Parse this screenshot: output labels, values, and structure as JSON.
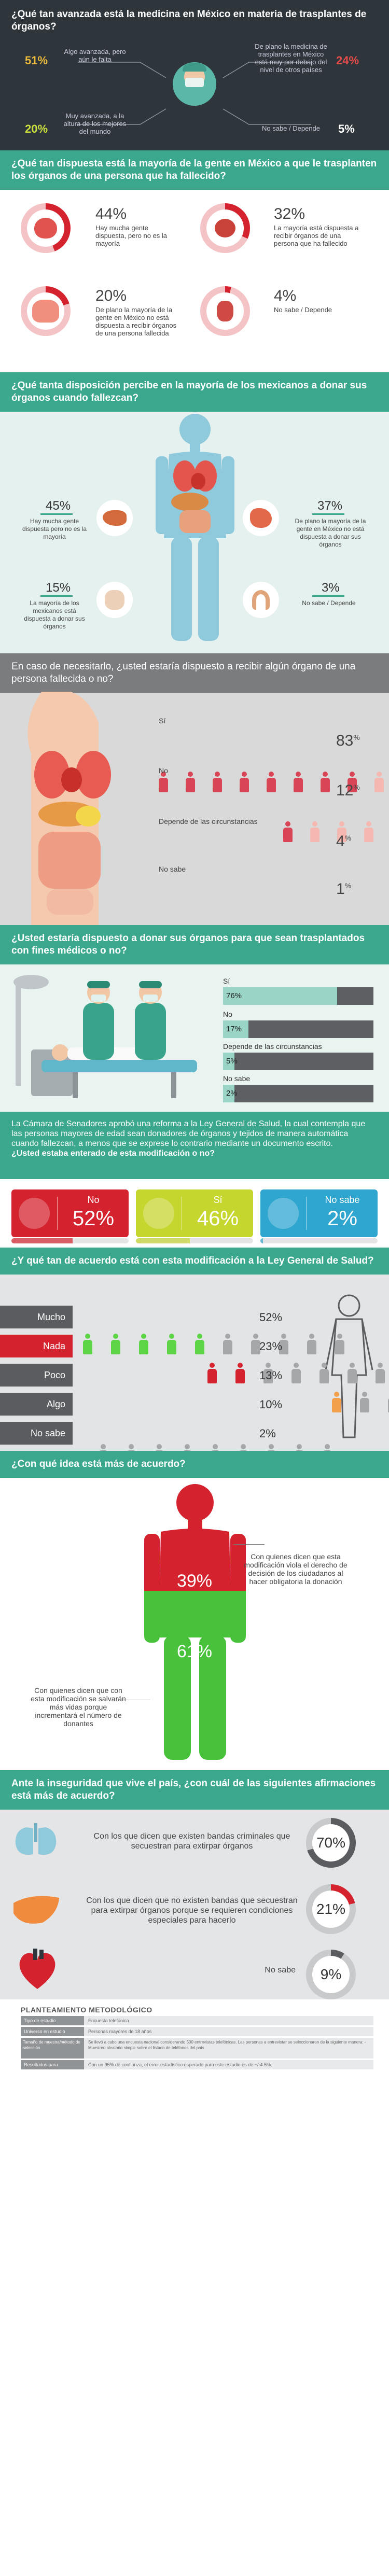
{
  "s1": {
    "title": "¿Qué tan avanzada está la medicina en México en materia de trasplantes de órganos?",
    "items": [
      {
        "pct": "51%",
        "color": "#e8b93a",
        "label": "Algo avanzada, pero aún le falta"
      },
      {
        "pct": "24%",
        "color": "#e34a4a",
        "label": "De plano la medicina de trasplantes en México está muy por debajo del nivel de otros países"
      },
      {
        "pct": "20%",
        "color": "#cadf3e",
        "label": "Muy avanzada, a la altura de los mejores del mundo"
      },
      {
        "pct": "5%",
        "color": "#ffffff",
        "label": "No sabe / Depende"
      }
    ]
  },
  "s2": {
    "title": "¿Qué tan dispuesta está la mayoría de la gente en México a que le trasplanten los órganos de una persona que ha fallecido?",
    "items": [
      {
        "pct": "44%",
        "label": "Hay mucha gente dispuesta, pero no es la mayoría",
        "value": 44
      },
      {
        "pct": "32%",
        "label": "La mayoría está dispuesta a recibir órganos de una persona que ha fallecido",
        "value": 32
      },
      {
        "pct": "20%",
        "label": "De plano la mayoría de la gente en México no está dispuesta a recibir órganos de una persona fallecida",
        "value": 20
      },
      {
        "pct": "4%",
        "label": "No sabe / Depende",
        "value": 4
      }
    ]
  },
  "s3": {
    "title": "¿Qué tanta disposición percibe en la mayoría de los mexicanos a donar sus órganos cuando fallezcan?",
    "items": [
      {
        "pct": "45%",
        "label": "Hay mucha gente dispuesta pero no es la mayoría"
      },
      {
        "pct": "37%",
        "label": "De plano la mayoría de la gente en México no está dispuesta a donar sus órganos"
      },
      {
        "pct": "15%",
        "label": "La mayoría de los mexicanos está dispuesta a donar sus órganos"
      },
      {
        "pct": "3%",
        "label": "No sabe / Depende"
      }
    ]
  },
  "s4": {
    "title": "En caso de necesitarlo, ¿usted estaría dispuesto a recibir algún órgano de una persona fallecida o no?",
    "rows": [
      {
        "label": "Sí",
        "pct": "83",
        "unit": "%",
        "value": 83
      },
      {
        "label": "No",
        "pct": "12",
        "unit": "%",
        "value": 12
      },
      {
        "label": "Depende de las circunstancias",
        "pct": "4",
        "unit": "%",
        "value": 4
      },
      {
        "label": "No sabe",
        "pct": "1",
        "unit": "%",
        "value": 1
      }
    ]
  },
  "s5": {
    "title": "¿Usted estaría dispuesto a donar sus órganos para que sean trasplantados con fines médicos o no?",
    "rows": [
      {
        "label": "Sí",
        "pct": "76%",
        "value": 76
      },
      {
        "label": "No",
        "pct": "17%",
        "value": 17
      },
      {
        "label": "Depende de las circunstancias",
        "pct": "5%",
        "value": 5
      },
      {
        "label": "No sabe",
        "pct": "2%",
        "value": 2
      }
    ]
  },
  "s6": {
    "intro": "La Cámara de Senadores aprobó una reforma a la Ley General de Salud, la cual contempla que las personas mayores de edad sean donadores de órganos y tejidos de manera automática cuando fallezcan, a menos que se exprese lo contrario mediante un documento escrito.",
    "question": "¿Usted estaba enterado de esta modificación o no?",
    "cards": [
      {
        "label": "No",
        "pct": "52%",
        "color": "#d4232f"
      },
      {
        "label": "Sí",
        "pct": "46%",
        "color": "#c5d62f"
      },
      {
        "label": "No sabe",
        "pct": "2%",
        "color": "#2fa6cf"
      }
    ]
  },
  "s7": {
    "title": "¿Y qué tan de acuerdo está con esta modificación a la Ley General de Salud?",
    "rows": [
      {
        "label": "Mucho",
        "pct": "52%",
        "value": 52,
        "color": "#5ed447"
      },
      {
        "label": "Nada",
        "pct": "23%",
        "value": 23,
        "color": "#d4232f"
      },
      {
        "label": "Poco",
        "pct": "13%",
        "value": 13,
        "color": "#f2a04b"
      },
      {
        "label": "Algo",
        "pct": "10%",
        "value": 10,
        "color": "#f6e04a"
      },
      {
        "label": "No sabe",
        "pct": "2%",
        "value": 2,
        "color": "#8a8c8e"
      }
    ]
  },
  "s8": {
    "title": "¿Con qué idea está más de acuerdo?",
    "top": {
      "pct": "39%",
      "label": "Con quienes dicen que esta modificación viola el derecho de decisión de los ciudadanos al hacer obligatoria la donación",
      "value": 39
    },
    "bottom": {
      "pct": "61%",
      "label": "Con quienes dicen que con esta modificación se salvarán más vidas porque incrementará el número de donantes",
      "value": 61
    }
  },
  "s9": {
    "title": "Ante la inseguridad que vive el país, ¿con cuál de las siguientes afirmaciones está más de acuerdo?",
    "rows": [
      {
        "label": "Con los que dicen que existen bandas criminales que secuestran para extirpar órganos",
        "pct": "70%",
        "value": 70
      },
      {
        "label": "Con los que dicen que no existen bandas que secuestran para extirpar órganos porque se requieren condiciones especiales para hacerlo",
        "pct": "21%",
        "value": 21
      },
      {
        "label": "No sabe",
        "pct": "9%",
        "value": 9
      }
    ]
  },
  "method": {
    "title": "PLANTEAMIENTO METODOLÓGICO",
    "rows": [
      {
        "k": "Tipo de estudio",
        "v": "Encuesta telefónica"
      },
      {
        "k": "Universo en estudio",
        "v": "Personas mayores de 18 años"
      },
      {
        "k": "Tamaño de muestra/método de selección",
        "v": "Se llevó a cabo una encuesta nacional considerando 500 entrevistas telefónicas. Las personas a entrevistar se seleccionaron de la siguiente manera: - Muestreo aleatorio simple sobre el listado de teléfonos del país"
      },
      {
        "k": "Resultados para",
        "v": "Con un 95% de confianza, el error estadístico esperado para este estudio es de +/-4.5%."
      }
    ]
  },
  "colors": {
    "green": "#3ba88e",
    "dark": "#2e353b",
    "red": "#d4232f",
    "salmon": "#f28b6e"
  }
}
